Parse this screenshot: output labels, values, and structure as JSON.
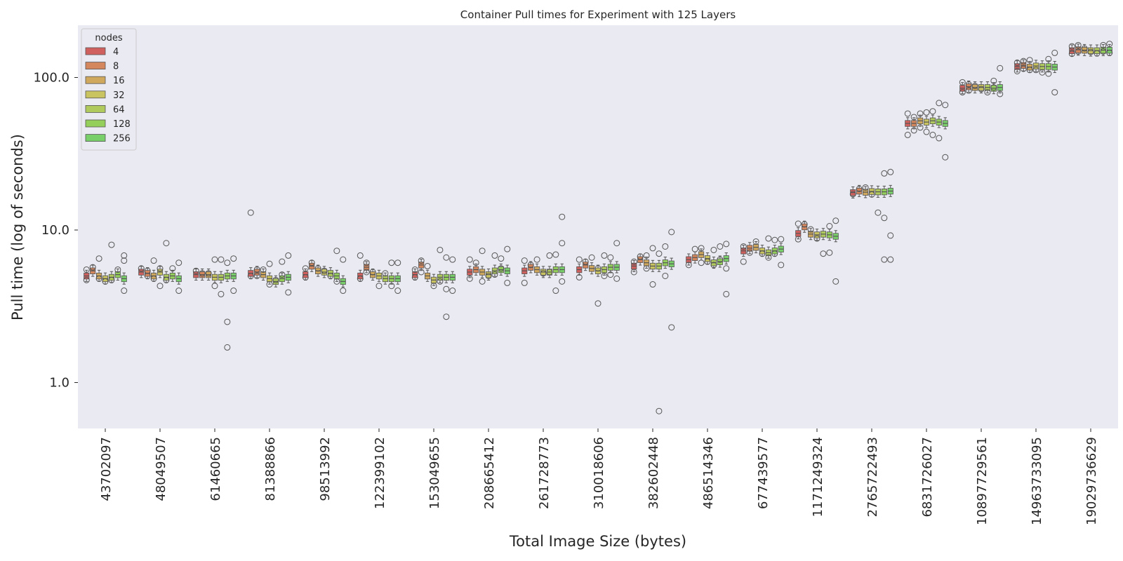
{
  "chart_data": {
    "type": "box",
    "title": "Container Pull times for Experiment with 125 Layers",
    "xlabel": "Total Image Size (bytes)",
    "ylabel": "Pull time (log of seconds)",
    "yscale": "log",
    "ylim": [
      0.5,
      220
    ],
    "yticks": [
      1.0,
      10.0,
      100.0
    ],
    "ytick_labels": [
      "1.0",
      "10.0",
      "100.0"
    ],
    "grid": false,
    "legend": {
      "title": "nodes",
      "placement": "top-left",
      "labels": [
        "4",
        "8",
        "16",
        "32",
        "64",
        "128",
        "256"
      ]
    },
    "colors": [
      "#d0605e",
      "#d4865c",
      "#cfa85e",
      "#c9c460",
      "#b0ca5e",
      "#94cf5c",
      "#79d06a"
    ],
    "categories": [
      "43702097",
      "48049507",
      "61460665",
      "81388866",
      "98513992",
      "122399102",
      "153049655",
      "208665412",
      "261728773",
      "310018606",
      "382602448",
      "486514346",
      "677439577",
      "1171249324",
      "2765722493",
      "6831726027",
      "10897729561",
      "14963733095",
      "19029736629"
    ],
    "series": [
      {
        "name": "4",
        "medians": [
          5.0,
          5.3,
          5.1,
          5.2,
          5.1,
          5.0,
          5.1,
          5.3,
          5.4,
          5.5,
          5.8,
          6.4,
          7.3,
          9.5,
          17.6,
          50,
          85,
          118,
          150
        ],
        "outliers": [
          [
            4.7,
            5.5
          ],
          [
            5.6
          ],
          [
            5.4
          ],
          [
            13.0,
            5.0
          ],
          [
            4.9,
            5.6
          ],
          [
            6.8,
            4.8
          ],
          [
            4.9,
            5.5
          ],
          [
            4.8,
            6.4
          ],
          [
            4.5,
            6.3
          ],
          [
            4.9,
            6.4
          ],
          [
            5.3,
            6.2
          ],
          [
            5.9
          ],
          [
            6.2,
            7.8
          ],
          [
            8.7,
            11.0
          ],
          [
            17.2
          ],
          [
            42,
            58
          ],
          [
            80,
            93
          ],
          [
            110,
            125
          ],
          [
            143,
            160
          ]
        ]
      },
      {
        "name": "8",
        "medians": [
          5.4,
          5.2,
          5.1,
          5.3,
          5.8,
          5.7,
          5.9,
          5.5,
          5.7,
          5.9,
          6.4,
          6.6,
          7.6,
          10.5,
          18.0,
          50,
          87,
          120,
          152
        ],
        "outliers": [
          [
            5.7
          ],
          [
            5.0,
            5.4
          ],
          [
            5.2
          ],
          [
            5.0,
            5.5
          ],
          [
            6.1
          ],
          [
            5.3,
            6.1
          ],
          [
            6.3,
            5.3
          ],
          [
            6.1
          ],
          [
            5.9
          ],
          [
            6.2
          ],
          [
            6.7
          ],
          [
            7.5
          ],
          [
            7.1
          ],
          [
            10.9
          ],
          [
            18.6
          ],
          [
            45,
            55
          ],
          [
            82,
            90
          ],
          [
            114,
            128
          ],
          [
            148,
            163
          ]
        ]
      },
      {
        "name": "16",
        "medians": [
          5.0,
          5.0,
          5.1,
          5.1,
          5.4,
          5.1,
          5.0,
          5.3,
          5.5,
          5.6,
          6.1,
          6.9,
          7.7,
          9.4,
          17.7,
          52,
          86,
          117,
          151
        ],
        "outliers": [
          [
            6.5,
            4.8
          ],
          [
            6.3,
            4.8
          ],
          [
            5.2
          ],
          [
            5.5
          ],
          [
            5.6
          ],
          [
            5.3
          ],
          [
            5.8
          ],
          [
            7.3,
            4.6
          ],
          [
            6.4
          ],
          [
            6.6
          ],
          [
            6.8,
            5.6
          ],
          [
            7.6,
            6.1
          ],
          [
            8.4
          ],
          [
            10.1
          ],
          [
            19.0
          ],
          [
            58,
            47
          ],
          [
            88
          ],
          [
            130,
            112
          ],
          [
            155
          ]
        ]
      },
      {
        "name": "32",
        "medians": [
          4.8,
          5.3,
          4.9,
          4.8,
          5.3,
          5.0,
          4.7,
          5.1,
          5.3,
          5.4,
          5.8,
          6.5,
          7.3,
          9.3,
          17.9,
          51,
          86,
          119,
          150
        ],
        "outliers": [
          [
            4.6
          ],
          [
            5.6,
            4.3
          ],
          [
            4.3,
            6.4
          ],
          [
            4.4,
            6.0
          ],
          [
            5.4
          ],
          [
            4.3
          ],
          [
            4.3
          ],
          [
            5.0
          ],
          [
            5.2
          ],
          [
            5.6,
            3.3
          ],
          [
            4.4,
            7.6
          ],
          [
            6.2
          ],
          [
            7.0
          ],
          [
            8.8
          ],
          [
            17.1
          ],
          [
            59,
            44
          ],
          [
            84
          ],
          [
            112
          ],
          [
            147
          ]
        ]
      },
      {
        "name": "64",
        "medians": [
          4.9,
          4.9,
          4.9,
          4.6,
          5.2,
          4.8,
          4.9,
          5.4,
          5.3,
          5.5,
          5.8,
          6.1,
          7.1,
          9.4,
          17.8,
          52,
          86,
          118,
          150
        ],
        "outliers": [
          [
            4.7,
            8.0
          ],
          [
            4.7,
            8.2
          ],
          [
            3.8,
            6.4
          ],
          [
            4.7
          ],
          [
            5.0
          ],
          [
            5.2
          ],
          [
            4.6,
            7.4
          ],
          [
            5.1,
            6.8
          ],
          [
            5.3,
            6.8
          ],
          [
            5.0,
            6.8
          ],
          [
            0.65,
            7.0
          ],
          [
            5.9,
            7.4
          ],
          [
            6.6,
            8.8
          ],
          [
            7.0
          ],
          [
            13.0
          ],
          [
            42,
            60
          ],
          [
            80
          ],
          [
            108
          ],
          [
            144
          ]
        ]
      },
      {
        "name": "128",
        "medians": [
          5.1,
          5.0,
          5.0,
          4.8,
          5.0,
          4.8,
          4.9,
          5.5,
          5.5,
          5.7,
          6.1,
          6.2,
          7.3,
          9.3,
          17.8,
          51,
          85,
          118,
          151
        ],
        "outliers": [
          [
            5.5
          ],
          [
            5.6
          ],
          [
            2.5,
            1.7,
            6.1
          ],
          [
            5.1,
            6.2
          ],
          [
            7.3,
            4.6
          ],
          [
            4.3,
            6.1
          ],
          [
            2.7,
            6.6,
            4.1
          ],
          [
            5.6,
            6.5
          ],
          [
            4.0,
            6.9
          ],
          [
            6.6,
            5.1
          ],
          [
            5.0,
            7.8
          ],
          [
            6.4,
            7.8
          ],
          [
            7.0,
            8.6
          ],
          [
            7.1,
            10.6
          ],
          [
            12.0,
            23.5,
            6.4
          ],
          [
            40,
            68
          ],
          [
            95,
            86
          ],
          [
            106,
            132
          ],
          [
            148,
            163
          ]
        ]
      },
      {
        "name": "256",
        "medians": [
          4.8,
          4.8,
          5.0,
          4.9,
          4.6,
          4.8,
          4.9,
          5.4,
          5.5,
          5.7,
          6.0,
          6.5,
          7.5,
          9.1,
          18.0,
          50,
          86,
          117,
          151
        ],
        "outliers": [
          [
            6.8,
            4.0,
            6.3
          ],
          [
            6.1,
            4.0
          ],
          [
            6.5,
            4.0
          ],
          [
            6.8,
            3.9
          ],
          [
            6.4,
            4.0
          ],
          [
            6.1,
            4.0
          ],
          [
            6.4,
            4.0
          ],
          [
            7.5,
            4.5
          ],
          [
            12.2,
            4.6,
            8.2
          ],
          [
            8.2,
            4.8
          ],
          [
            9.7,
            2.3
          ],
          [
            8.1,
            3.8,
            5.6
          ],
          [
            8.7,
            5.9
          ],
          [
            11.5,
            4.6
          ],
          [
            24.0,
            6.4,
            9.2
          ],
          [
            30,
            66
          ],
          [
            78,
            115
          ],
          [
            80,
            145
          ],
          [
            145,
            166
          ]
        ]
      }
    ]
  }
}
